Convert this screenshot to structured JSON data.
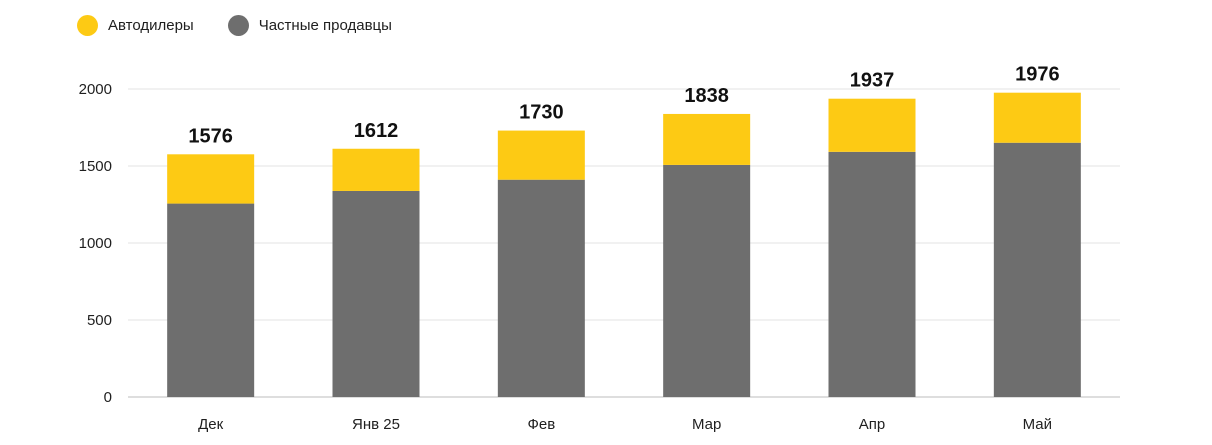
{
  "chart_data": {
    "type": "bar",
    "stacked": true,
    "categories": [
      "Дек",
      "Янв 25",
      "Фев",
      "Мар",
      "Апр",
      "Май"
    ],
    "series": [
      {
        "name": "Частные продавцы",
        "values": [
          1256,
          1338,
          1411,
          1507,
          1592,
          1651
        ],
        "color": "#6e6e6e"
      },
      {
        "name": "Автодилеры",
        "values": [
          320,
          274,
          319,
          331,
          345,
          325
        ],
        "color": "#fdca14"
      }
    ],
    "totals": [
      "1576",
      "1612",
      "1730",
      "1838",
      "1937",
      "1976"
    ],
    "yticks": [
      "0",
      "500",
      "1000",
      "1500",
      "2000"
    ],
    "ylim": [
      0,
      2000
    ],
    "grid": true,
    "legend": "top-left",
    "title": "",
    "xlabel": "",
    "ylabel": ""
  },
  "legend": [
    {
      "label": "Автодилеры",
      "color": "#fdca14"
    },
    {
      "label": "Частные продавцы",
      "color": "#6e6e6e"
    }
  ]
}
